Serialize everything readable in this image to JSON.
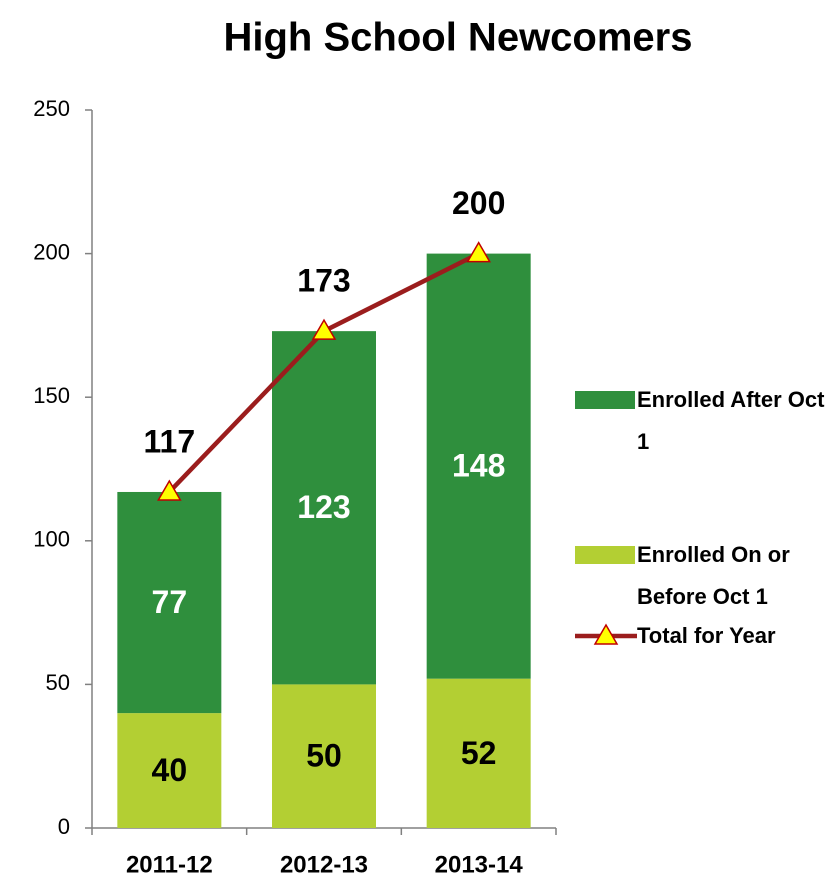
{
  "chart_data": {
    "type": "bar",
    "stacked": true,
    "title": "High School Newcomers",
    "categories": [
      "2011-12",
      "2012-13",
      "2013-14"
    ],
    "series": [
      {
        "name": "Enrolled On or Before Oct 1",
        "type": "bar",
        "color": "#b3cf33",
        "label_color": "#000000",
        "values": [
          40,
          50,
          52
        ]
      },
      {
        "name": "Enrolled After Oct 1",
        "type": "bar",
        "color": "#2f8f3d",
        "label_color": "#ffffff",
        "values": [
          77,
          123,
          148
        ]
      },
      {
        "name": "Total for Year",
        "type": "line",
        "color": "#9b1d1d",
        "marker_color": "#ffff00",
        "label_color": "#000000",
        "values": [
          117,
          173,
          200
        ]
      }
    ],
    "ylim": [
      0,
      250
    ],
    "yticks": [
      0,
      50,
      100,
      150,
      200,
      250
    ],
    "grid": false,
    "legend": "right"
  }
}
